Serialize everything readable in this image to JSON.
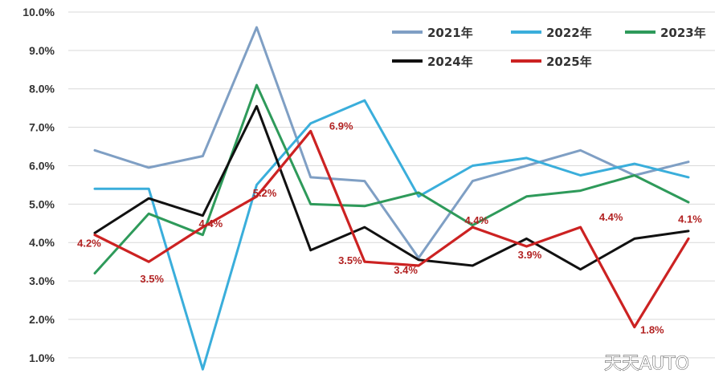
{
  "chart_data": {
    "type": "line",
    "y_ticks": [
      "1.0%",
      "2.0%",
      "3.0%",
      "4.0%",
      "5.0%",
      "6.0%",
      "7.0%",
      "8.0%",
      "9.0%",
      "10.0%"
    ],
    "ylim": [
      0.6,
      10.0
    ],
    "grid": true,
    "legend_position": "top-right",
    "num_points": 12,
    "series": [
      {
        "name": "2021年",
        "color": "#7f9fc4",
        "values": [
          6.4,
          5.95,
          6.25,
          9.6,
          5.7,
          5.6,
          3.6,
          5.6,
          6.0,
          6.4,
          5.75,
          6.1
        ]
      },
      {
        "name": "2022年",
        "color": "#3aaedb",
        "values": [
          5.4,
          5.4,
          0.7,
          5.5,
          7.1,
          7.7,
          5.2,
          6.0,
          6.2,
          5.75,
          6.05,
          5.7
        ]
      },
      {
        "name": "2023年",
        "color": "#2e9a5a",
        "values": [
          3.2,
          4.75,
          4.2,
          8.1,
          5.0,
          4.95,
          5.3,
          4.45,
          5.2,
          5.35,
          5.75,
          5.05
        ]
      },
      {
        "name": "2024年",
        "color": "#111111",
        "values": [
          4.25,
          5.15,
          4.7,
          7.55,
          3.8,
          4.4,
          3.55,
          3.4,
          4.1,
          3.3,
          4.1,
          4.3
        ]
      },
      {
        "name": "2025年",
        "color": "#cc2222",
        "values": [
          4.2,
          3.5,
          4.4,
          5.2,
          6.9,
          3.5,
          3.4,
          4.4,
          3.9,
          4.4,
          1.8,
          4.1
        ]
      }
    ],
    "data_labels": [
      {
        "text": "4.2%",
        "index": 0,
        "value": 4.2
      },
      {
        "text": "3.5%",
        "index": 1,
        "value": 3.5
      },
      {
        "text": "4.4%",
        "index": 2,
        "value": 4.4
      },
      {
        "text": "5.2%",
        "index": 3,
        "value": 5.2
      },
      {
        "text": "6.9%",
        "index": 4,
        "value": 6.9
      },
      {
        "text": "3.5%",
        "index": 5,
        "value": 3.5
      },
      {
        "text": "3.4%",
        "index": 6,
        "value": 3.4
      },
      {
        "text": "4.4%",
        "index": 7,
        "value": 4.4
      },
      {
        "text": "3.9%",
        "index": 8,
        "value": 3.9
      },
      {
        "text": "4.4%",
        "index": 9,
        "value": 4.4
      },
      {
        "text": "1.8%",
        "index": 10,
        "value": 1.8
      },
      {
        "text": "4.1%",
        "index": 11,
        "value": 4.1
      }
    ],
    "data_label_color": "#b22222"
  },
  "watermark": "天天AUTO"
}
